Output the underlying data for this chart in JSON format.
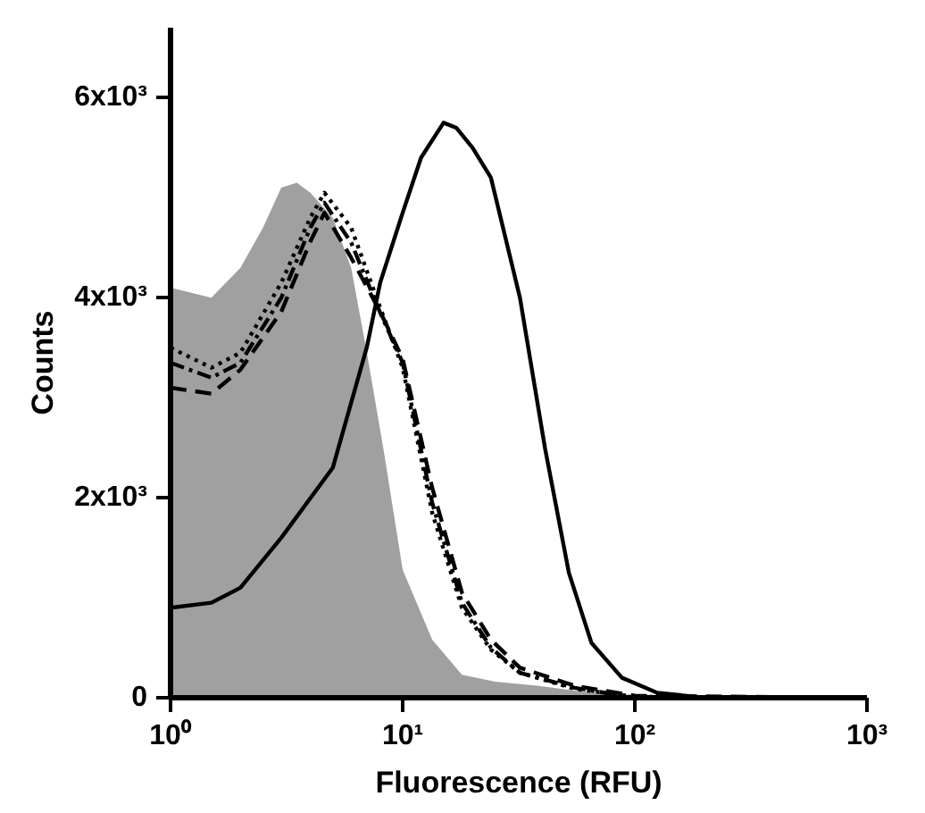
{
  "chart_data": {
    "type": "line",
    "xlabel": "Fluorescence (RFU)",
    "ylabel": "Counts",
    "log": "x",
    "grid": false,
    "xlim": [
      1,
      1000
    ],
    "xticks": [
      {
        "value": 1,
        "label": "10⁰"
      },
      {
        "value": 10,
        "label": "10¹"
      },
      {
        "value": 100,
        "label": "10²"
      },
      {
        "value": 1000,
        "label": "10³"
      }
    ],
    "ylim": [
      0,
      6700
    ],
    "yticks": [
      {
        "value": 0,
        "label": "0"
      },
      {
        "value": 2000,
        "label": "2x10³"
      },
      {
        "value": 4000,
        "label": "4x10³"
      },
      {
        "value": 6000,
        "label": "6x10³"
      }
    ],
    "series": [
      {
        "type": "area",
        "color": "#a0a0a0",
        "x": [
          1,
          1.5,
          2,
          2.5,
          3,
          3.5,
          4,
          5,
          6,
          7,
          8.3,
          10,
          13.4,
          18,
          25,
          38,
          60,
          100,
          1000
        ],
        "values": [
          4100,
          4000,
          4300,
          4700,
          5100,
          5150,
          5050,
          4800,
          4300,
          3460,
          2460,
          1280,
          580,
          230,
          160,
          120,
          60,
          10,
          0
        ]
      },
      {
        "color": "#000000",
        "line_style": "solid",
        "x": [
          1,
          1.5,
          2,
          3,
          5,
          7,
          8,
          10,
          12,
          15,
          17,
          20,
          24,
          32,
          41,
          52,
          65,
          88,
          125,
          200,
          1000
        ],
        "values": [
          900,
          950,
          1100,
          1600,
          2300,
          3500,
          4150,
          4850,
          5400,
          5750,
          5700,
          5500,
          5200,
          4000,
          2500,
          1250,
          550,
          200,
          50,
          0,
          0
        ]
      },
      {
        "color": "#000000",
        "line_style": "dashed",
        "x": [
          1,
          1.5,
          2,
          3,
          4,
          4.6,
          6,
          8,
          10,
          13.4,
          18,
          24,
          32,
          55,
          100,
          1000
        ],
        "values": [
          3100,
          3040,
          3280,
          3860,
          4560,
          4850,
          4400,
          3860,
          3390,
          2100,
          1050,
          580,
          300,
          120,
          20,
          0
        ]
      },
      {
        "color": "#000000",
        "line_style": "dotted",
        "x": [
          1,
          1.5,
          2,
          3,
          4,
          4.6,
          6,
          8,
          10,
          13.4,
          18,
          24,
          32,
          55,
          100,
          1000
        ],
        "values": [
          3500,
          3300,
          3450,
          4150,
          4800,
          5050,
          4700,
          3900,
          3300,
          1850,
          900,
          480,
          250,
          90,
          10,
          0
        ]
      },
      {
        "color": "#000000",
        "line_style": "dashdot",
        "x": [
          1,
          1.5,
          2,
          3,
          4,
          4.6,
          6,
          8,
          10,
          13.4,
          18,
          24,
          32,
          55,
          100,
          1000
        ],
        "values": [
          3350,
          3200,
          3350,
          4000,
          4700,
          4950,
          4550,
          3850,
          3350,
          1950,
          950,
          500,
          250,
          100,
          0,
          0
        ]
      }
    ]
  }
}
